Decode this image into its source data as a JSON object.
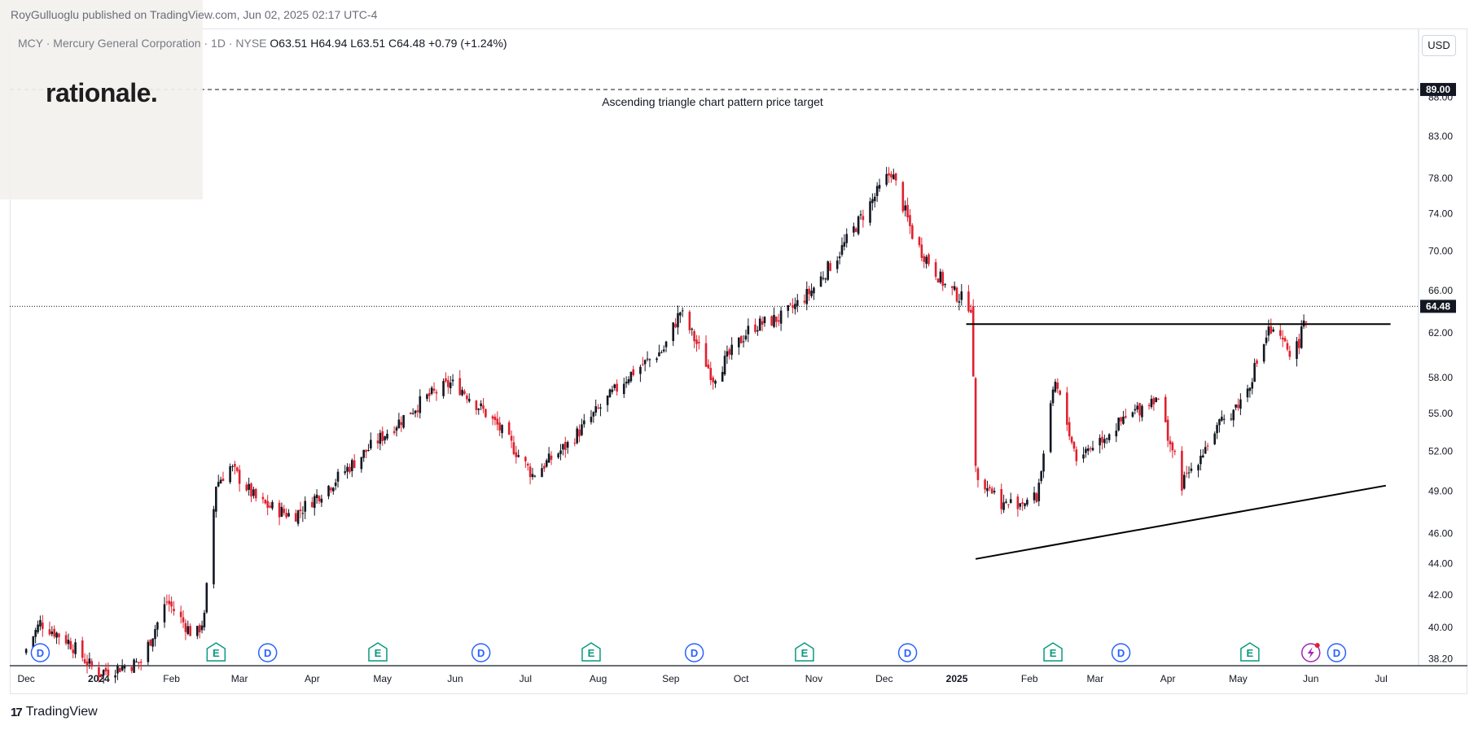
{
  "publisher": "RoyGulluoglu published on TradingView.com, Jun 02, 2025 02:17 UTC-4",
  "symbol": {
    "name": "MCY · Mercury General Corporation",
    "interval": "· 1D · NYSE",
    "open": "O63.51",
    "high": "H64.94",
    "low": "L63.51",
    "close": "C64.48",
    "change": "+0.79 (+1.24%)"
  },
  "currency": "USD",
  "logo": "rationale.",
  "footer_logo": "TradingView",
  "colors": {
    "up": "#131722",
    "down": "#e0202f",
    "accent": "#2962ff",
    "earnings": "#089981"
  },
  "chart_data": {
    "type": "candlestick",
    "y_axis": {
      "ticks": [
        "38.20",
        "40.00",
        "42.00",
        "44.00",
        "46.00",
        "49.00",
        "52.00",
        "55.00",
        "58.00",
        "62.00",
        "66.00",
        "70.00",
        "74.00",
        "78.00",
        "83.00",
        "88.00"
      ],
      "scale": "log",
      "range": [
        37.8,
        95
      ]
    },
    "x_axis": {
      "ticks": [
        "Dec",
        "2024",
        "Feb",
        "Mar",
        "Apr",
        "May",
        "Jun",
        "Jul",
        "Aug",
        "Sep",
        "Oct",
        "Nov",
        "Dec",
        "2025",
        "Feb",
        "Mar",
        "Apr",
        "May",
        "Jun",
        "Jul"
      ]
    },
    "last_price": "64.48",
    "target_price": "89.00",
    "annotation": "Ascending triangle chart pattern price target",
    "price_path": [
      [
        "2023-12-01",
        38.5
      ],
      [
        "2023-12-08",
        40.3
      ],
      [
        "2023-12-20",
        39.2
      ],
      [
        "2024-01-01",
        37.4
      ],
      [
        "2024-01-20",
        38.0
      ],
      [
        "2024-01-31",
        41.6
      ],
      [
        "2024-02-12",
        39.4
      ],
      [
        "2024-02-16",
        40.6
      ],
      [
        "2024-02-21",
        49.5
      ],
      [
        "2024-02-27",
        50.8
      ],
      [
        "2024-03-10",
        48.2
      ],
      [
        "2024-03-25",
        47.2
      ],
      [
        "2024-04-10",
        49.5
      ],
      [
        "2024-04-25",
        52.0
      ],
      [
        "2024-05-10",
        54.5
      ],
      [
        "2024-05-20",
        56.2
      ],
      [
        "2024-05-31",
        57.5
      ],
      [
        "2024-06-05",
        57.0
      ],
      [
        "2024-06-20",
        54.0
      ],
      [
        "2024-07-05",
        50.2
      ],
      [
        "2024-07-20",
        52.5
      ],
      [
        "2024-08-03",
        55.5
      ],
      [
        "2024-08-15",
        58.2
      ],
      [
        "2024-08-30",
        60.5
      ],
      [
        "2024-09-06",
        64.0
      ],
      [
        "2024-09-20",
        58.0
      ],
      [
        "2024-10-06",
        62.5
      ],
      [
        "2024-10-20",
        63.5
      ],
      [
        "2024-11-01",
        66.0
      ],
      [
        "2024-11-12",
        69.5
      ],
      [
        "2024-11-27",
        75.5
      ],
      [
        "2024-12-05",
        78.8
      ],
      [
        "2024-12-15",
        71.0
      ],
      [
        "2024-12-28",
        66.5
      ],
      [
        "2025-01-08",
        64.5
      ],
      [
        "2025-01-10",
        50.5
      ],
      [
        "2025-01-22",
        48.0
      ],
      [
        "2025-02-05",
        48.5
      ],
      [
        "2025-02-13",
        57.5
      ],
      [
        "2025-02-22",
        51.5
      ],
      [
        "2025-03-15",
        54.5
      ],
      [
        "2025-03-28",
        56.5
      ],
      [
        "2025-04-08",
        49.5
      ],
      [
        "2025-04-22",
        53.5
      ],
      [
        "2025-05-05",
        56.5
      ],
      [
        "2025-05-15",
        62.2
      ],
      [
        "2025-05-26",
        60.0
      ],
      [
        "2025-06-02",
        64.48
      ]
    ],
    "drawings": {
      "resistance": [
        [
          "2025-01-05",
          62.8
        ],
        [
          "2025-07-05",
          62.8
        ]
      ],
      "support": [
        [
          "2025-01-09",
          44.3
        ],
        [
          "2025-07-03",
          49.4
        ]
      ]
    },
    "event_markers": [
      {
        "date": "2023-12-07",
        "label": "D"
      },
      {
        "date": "2024-02-20",
        "label": "E"
      },
      {
        "date": "2024-03-13",
        "label": "D"
      },
      {
        "date": "2024-04-29",
        "label": "E"
      },
      {
        "date": "2024-06-12",
        "label": "D"
      },
      {
        "date": "2024-07-29",
        "label": "E"
      },
      {
        "date": "2024-09-11",
        "label": "D"
      },
      {
        "date": "2024-10-28",
        "label": "E"
      },
      {
        "date": "2024-12-11",
        "label": "D"
      },
      {
        "date": "2025-02-11",
        "label": "E"
      },
      {
        "date": "2025-03-12",
        "label": "D"
      },
      {
        "date": "2025-05-06",
        "label": "E"
      },
      {
        "date": "2025-06-12",
        "label": "D"
      }
    ]
  }
}
